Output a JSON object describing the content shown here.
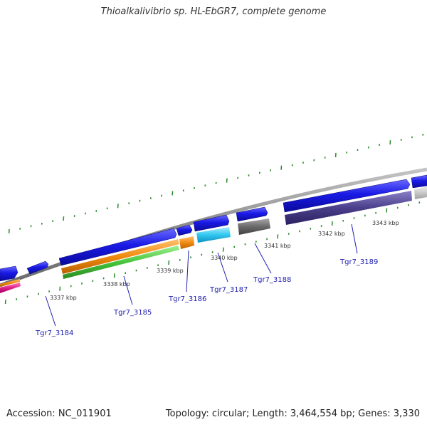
{
  "title": "Thioalkalivibrio sp. HL-EbGR7, complete genome",
  "footer": {
    "accession": "Accession: NC_011901",
    "topology": "Topology: circular; Length: 3,464,554 bp; Genes: 3,330"
  },
  "kbp_labels": [
    "3337 kbp",
    "3338 kbp",
    "3339 kbp",
    "3340 kbp",
    "3341 kbp",
    "3342 kbp",
    "3343 kbp"
  ],
  "gene_labels": [
    "Tgr7_3184",
    "Tgr7_3185",
    "Tgr7_3186",
    "Tgr7_3187",
    "Tgr7_3188",
    "Tgr7_3189"
  ],
  "colors": {
    "gene_forward": "#1a1ae6",
    "backbone": "#8a8a8a",
    "tick": "#2a8a2a",
    "label": "#2020b0",
    "orange": "#f08a10",
    "green": "#46c43c",
    "cyan": "#30c8f0",
    "dark_gray": "#6a6a6a",
    "purple": "#4a3f8a",
    "light_gray": "#c8c8c8",
    "magenta": "#e0208a"
  }
}
